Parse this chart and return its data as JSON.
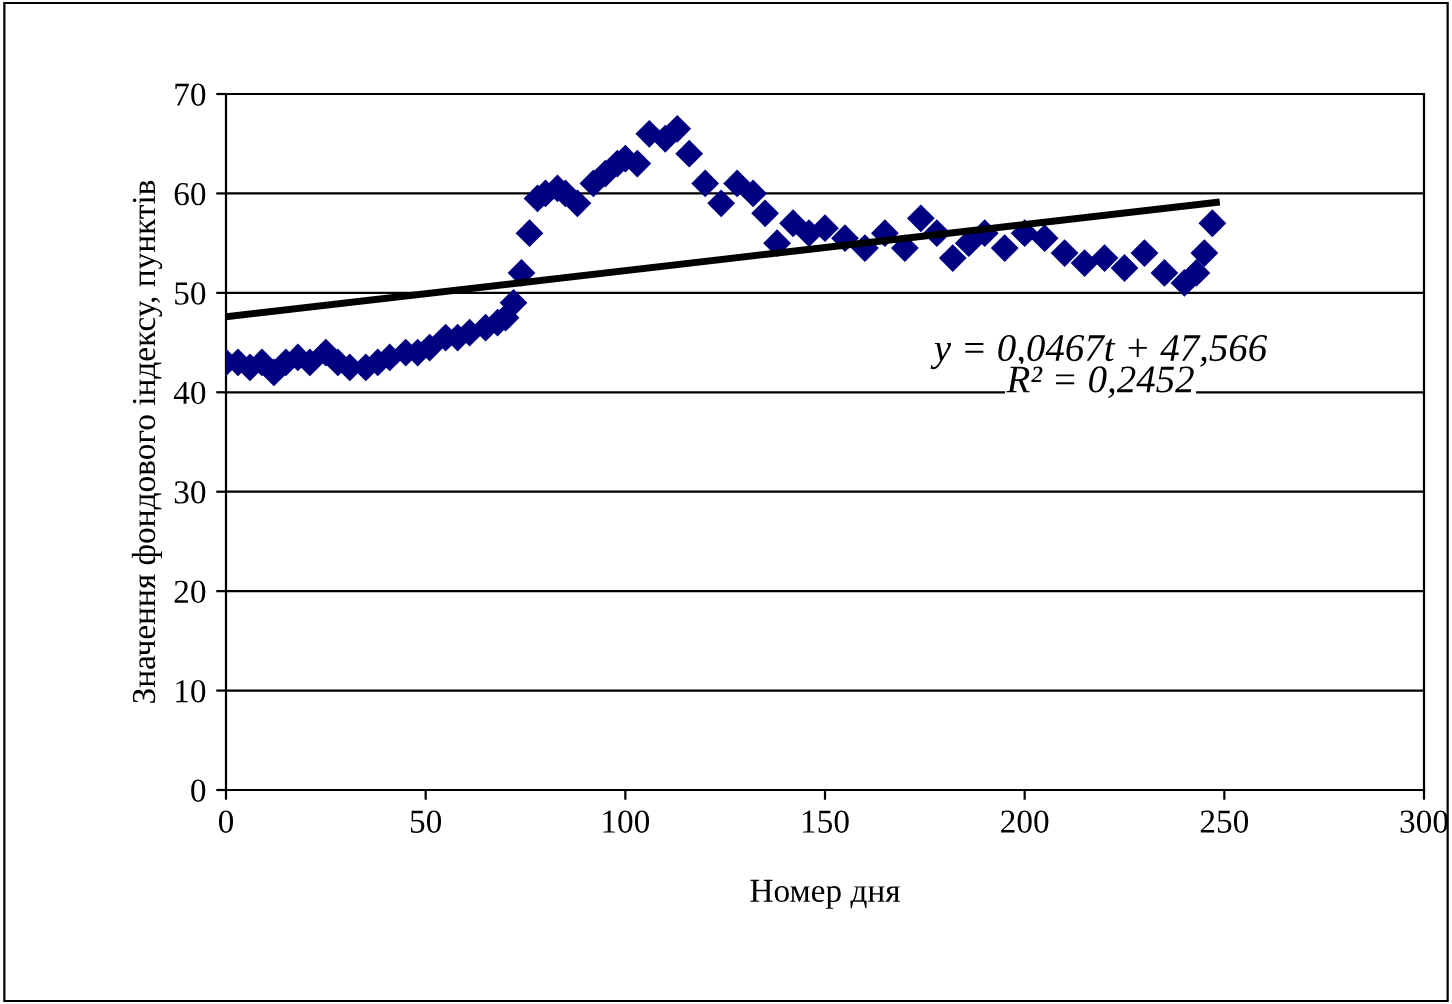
{
  "chart_data": {
    "type": "scatter",
    "xlabel": "Номер дня",
    "ylabel": "Значення фондового індексу, пунктів",
    "xlim": [
      0,
      300
    ],
    "xticks": [
      0,
      50,
      100,
      150,
      200,
      250,
      300
    ],
    "ylim": [
      0,
      70
    ],
    "yticks": [
      0,
      10,
      20,
      30,
      40,
      50,
      60,
      70
    ],
    "grid": "y",
    "legend": false,
    "series": [
      {
        "marker": "diamond",
        "color": "#000080",
        "x": [
          0,
          3,
          6,
          9,
          12,
          15,
          18,
          21,
          25,
          28,
          31,
          35,
          38,
          41,
          45,
          48,
          51,
          55,
          58,
          61,
          65,
          68,
          70,
          72,
          74,
          76,
          78,
          80,
          83,
          85,
          88,
          92,
          95,
          98,
          100,
          103,
          106,
          110,
          113,
          116,
          120,
          124,
          128,
          132,
          135,
          138,
          142,
          146,
          150,
          155,
          160,
          165,
          170,
          174,
          178,
          182,
          186,
          190,
          195,
          200,
          205,
          210,
          215,
          220,
          225,
          230,
          235,
          240,
          243,
          245,
          247
        ],
        "values": [
          43,
          43,
          42.5,
          43,
          42,
          43,
          43.5,
          43,
          44,
          43,
          42.5,
          42.5,
          43,
          43.5,
          44,
          44,
          44.5,
          45.5,
          45.5,
          46,
          46.5,
          47,
          47.5,
          49,
          52,
          56,
          59.5,
          60,
          60.5,
          60,
          59,
          61,
          62,
          63,
          63.5,
          63,
          66,
          65.5,
          66.5,
          64,
          61,
          59,
          61,
          60,
          58,
          55,
          57,
          56,
          56.5,
          55.5,
          54.5,
          56,
          54.5,
          57.5,
          56,
          53.5,
          55,
          56,
          54.5,
          56,
          55.5,
          54,
          53,
          53.5,
          52.5,
          54,
          52,
          51,
          52,
          54,
          57
        ]
      },
      {
        "type": "line",
        "color": "#000000",
        "x": [
          0,
          248
        ],
        "values": [
          47.6,
          59.1
        ]
      }
    ],
    "annotations": [
      "y = 0,0467t + 47,566",
      "R² = 0,2452"
    ]
  }
}
